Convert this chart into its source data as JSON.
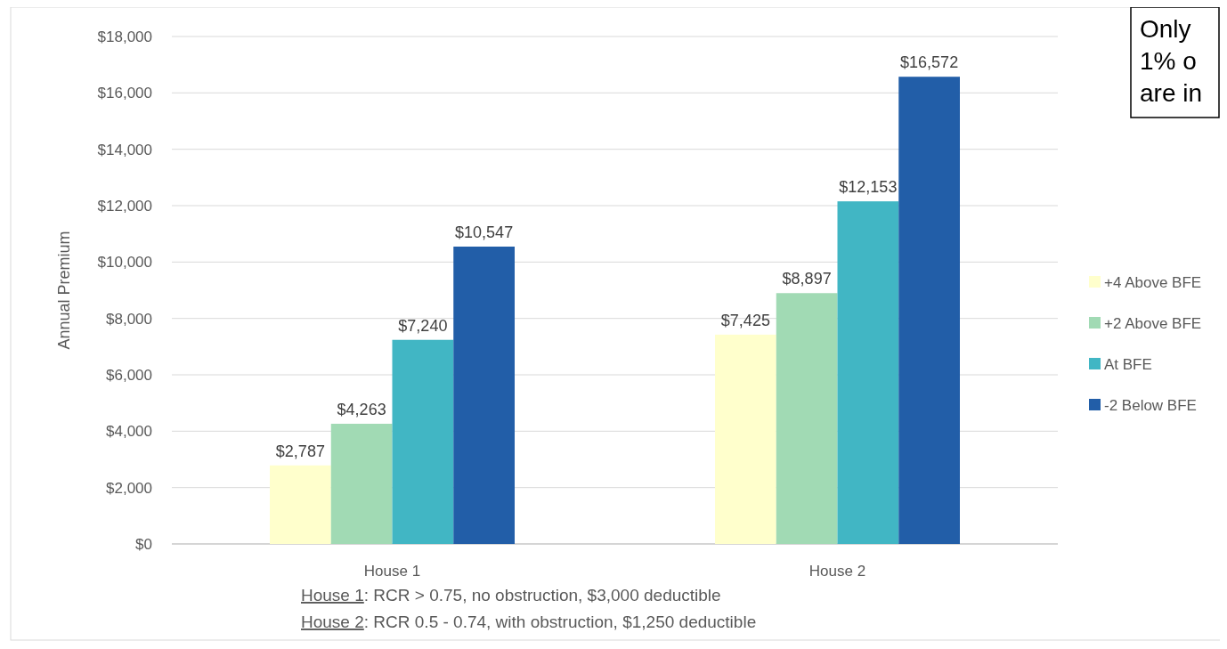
{
  "chart_data": {
    "type": "bar",
    "ylabel": "Annual Premium",
    "categories": [
      "House 1",
      "House 2"
    ],
    "series": [
      {
        "name": "+4 Above BFE",
        "color": "#ffffcc",
        "values": [
          2787,
          7425
        ],
        "value_labels": [
          "$2,787",
          "$7,425"
        ]
      },
      {
        "name": "+2 Above BFE",
        "color": "#a1dab4",
        "values": [
          4263,
          8897
        ],
        "value_labels": [
          "$4,263",
          "$8,897"
        ]
      },
      {
        "name": "At BFE",
        "color": "#41b6c4",
        "values": [
          7240,
          12153
        ],
        "value_labels": [
          "$7,240",
          "$12,153"
        ]
      },
      {
        "name": "-2  Below BFE",
        "color": "#225ea8",
        "values": [
          10547,
          16572
        ],
        "value_labels": [
          "$10,547",
          "$16,572"
        ]
      }
    ],
    "ylim": [
      0,
      18000
    ],
    "yticks": [
      {
        "value": 0,
        "label": "$0"
      },
      {
        "value": 2000,
        "label": "$2,000"
      },
      {
        "value": 4000,
        "label": "$4,000"
      },
      {
        "value": 6000,
        "label": "$6,000"
      },
      {
        "value": 8000,
        "label": "$8,000"
      },
      {
        "value": 10000,
        "label": "$10,000"
      },
      {
        "value": 12000,
        "label": "$12,000"
      },
      {
        "value": 14000,
        "label": "$14,000"
      },
      {
        "value": 16000,
        "label": "$16,000"
      },
      {
        "value": 18000,
        "label": "$18,000"
      }
    ],
    "grid": "y",
    "legend": "right",
    "annotations": [
      "House 1: RCR > 0.75, no obstruction, $3,000 deductible",
      "House 2: RCR 0.5 - 0.74, with obstruction, $1,250 deductible",
      "Only\n1% o\nare in"
    ]
  }
}
